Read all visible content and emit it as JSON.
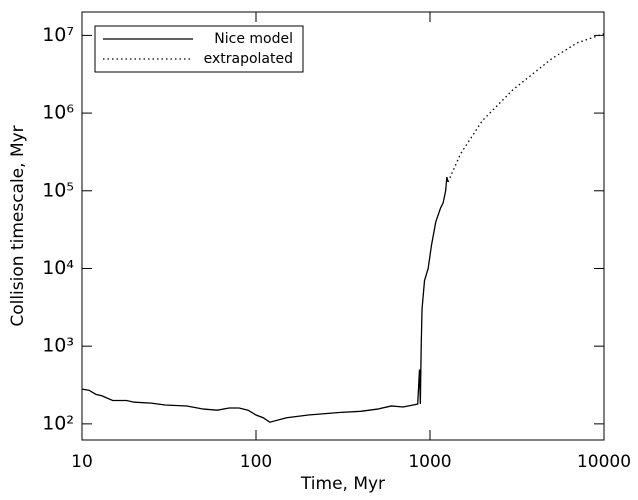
{
  "chart_data": {
    "type": "line",
    "xlabel": "Time, Myr",
    "ylabel": "Collision timescale, Myr",
    "xscale": "log",
    "yscale": "log",
    "xlim": [
      10,
      10000
    ],
    "ylim": [
      62,
      20000000
    ],
    "xticks": [
      10,
      100,
      1000,
      10000
    ],
    "yticks": [
      {
        "value": 100,
        "label": "10²"
      },
      {
        "value": 1000,
        "label": "10³"
      },
      {
        "value": 10000,
        "label": "10⁴"
      },
      {
        "value": 100000,
        "label": "10⁵"
      },
      {
        "value": 1000000,
        "label": "10⁶"
      },
      {
        "value": 10000000,
        "label": "10⁷"
      }
    ],
    "legend": "upper left",
    "series": [
      {
        "name": "Nice model",
        "color": "#000000",
        "style": "solid",
        "x": [
          10,
          11,
          12,
          13,
          15,
          18,
          20,
          25,
          30,
          40,
          50,
          60,
          70,
          80,
          90,
          100,
          110,
          120,
          150,
          200,
          300,
          400,
          500,
          600,
          700,
          800,
          850,
          870,
          880,
          890,
          900,
          930,
          976,
          1020,
          1080,
          1150,
          1190,
          1230,
          1250,
          1270
        ],
        "values": [
          280,
          270,
          240,
          230,
          200,
          200,
          190,
          185,
          175,
          170,
          155,
          150,
          160,
          160,
          150,
          130,
          120,
          105,
          120,
          130,
          140,
          145,
          155,
          170,
          165,
          175,
          180,
          500,
          180,
          1000,
          3000,
          7000,
          10000,
          20000,
          40000,
          60000,
          70000,
          100000,
          150000,
          130000
        ]
      },
      {
        "name": "extrapolated",
        "color": "#000000",
        "style": "dotted",
        "x": [
          1270,
          1500,
          2000,
          3000,
          5000,
          7000,
          10000
        ],
        "values": [
          130000,
          300000,
          800000,
          2000000,
          5000000,
          8000000,
          10500000
        ]
      }
    ]
  }
}
